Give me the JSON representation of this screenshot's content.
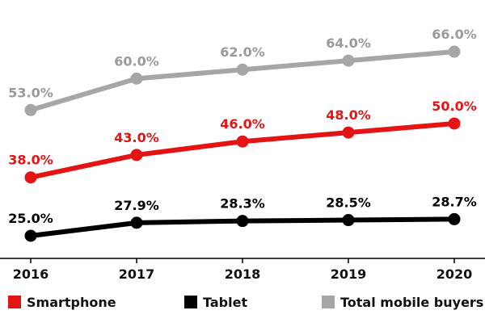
{
  "chart_data": {
    "type": "line",
    "categories": [
      "2016",
      "2017",
      "2018",
      "2019",
      "2020"
    ],
    "ylim": [
      20,
      70
    ],
    "grid": false,
    "legend_placement": "bottom",
    "series": [
      {
        "name": "Smartphone",
        "color": "#e41414",
        "values": [
          38.0,
          43.0,
          46.0,
          48.0,
          50.0
        ],
        "labels": [
          "38.0%",
          "43.0%",
          "46.0%",
          "48.0%",
          "50.0%"
        ]
      },
      {
        "name": "Tablet",
        "color": "#000000",
        "values": [
          25.0,
          27.9,
          28.3,
          28.5,
          28.7
        ],
        "labels": [
          "25.0%",
          "27.9%",
          "28.3%",
          "28.5%",
          "28.7%"
        ]
      },
      {
        "name": "Total mobile buyers",
        "color": "#a6a6a6",
        "values": [
          53.0,
          60.0,
          62.0,
          64.0,
          66.0
        ],
        "labels": [
          "53.0%",
          "60.0%",
          "62.0%",
          "64.0%",
          "66.0%"
        ]
      }
    ]
  }
}
